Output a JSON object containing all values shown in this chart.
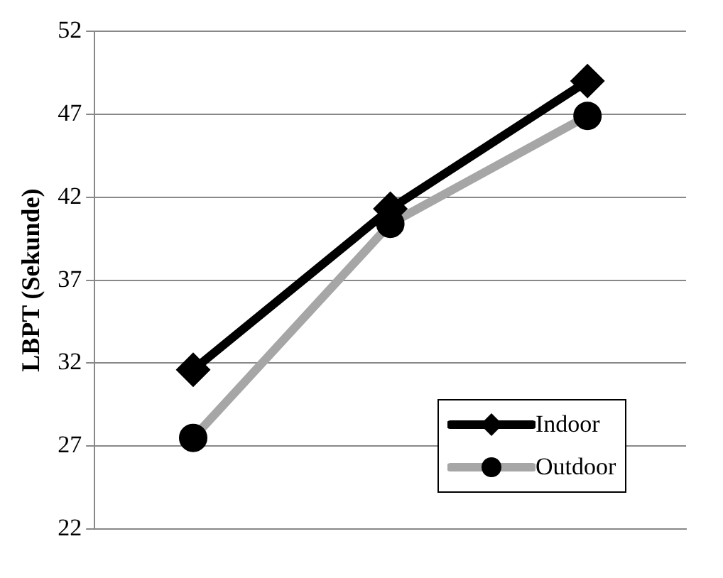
{
  "chart_data": {
    "type": "line",
    "ylabel": "LBPT (Sekunde)",
    "categories": [
      null,
      null,
      null
    ],
    "series": [
      {
        "name": "Indoor",
        "color": "#000000",
        "marker": "diamond",
        "values": [
          31.6,
          41.3,
          49.0
        ]
      },
      {
        "name": "Outdoor",
        "color": "#a6a6a6",
        "marker": "circle",
        "values": [
          27.5,
          40.4,
          46.9
        ]
      }
    ],
    "ylim": [
      22,
      52
    ],
    "yticks": [
      22,
      27,
      32,
      37,
      42,
      47,
      52
    ],
    "grid": "y",
    "legend": "bottom right",
    "line_style": "solid"
  }
}
